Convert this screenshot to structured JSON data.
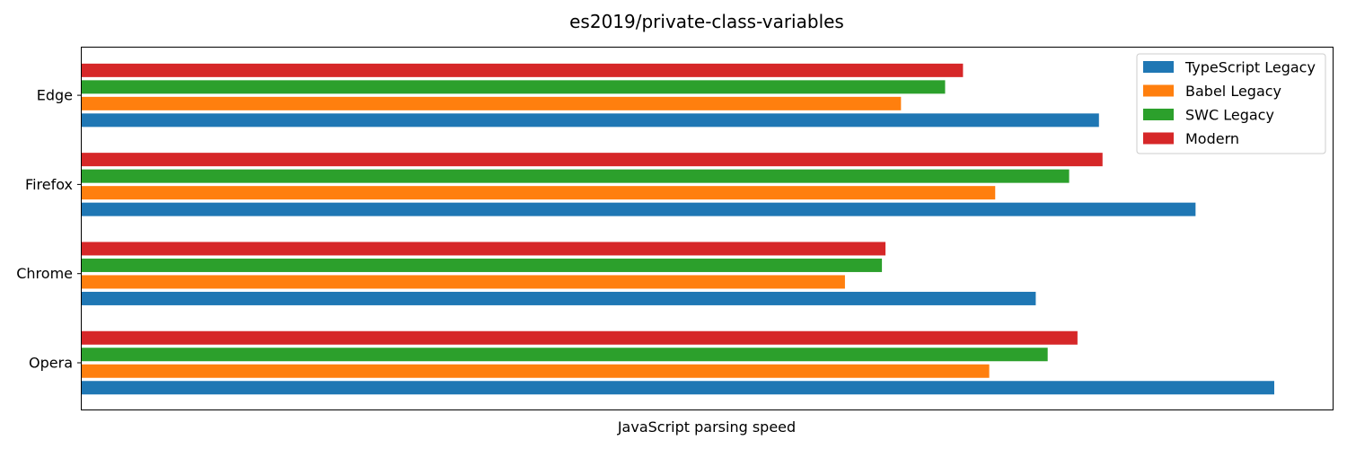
{
  "chart_data": {
    "type": "bar",
    "orientation": "horizontal",
    "title": "es2019/private-class-variables",
    "xlabel": "JavaScript parsing speed",
    "ylabel": "",
    "categories": [
      "Opera",
      "Chrome",
      "Firefox",
      "Edge"
    ],
    "xlim": [
      0,
      1
    ],
    "x_ticks_shown": false,
    "grid": false,
    "legend_position": "top-right",
    "series": [
      {
        "name": "TypeScript Legacy",
        "color": "#1f77b4",
        "values": [
          1.0,
          0.8,
          0.934,
          0.853
        ]
      },
      {
        "name": "Babel Legacy",
        "color": "#ff7f0e",
        "values": [
          0.761,
          0.64,
          0.766,
          0.687
        ]
      },
      {
        "name": "SWC Legacy",
        "color": "#2ca02c",
        "values": [
          0.81,
          0.671,
          0.828,
          0.724
        ]
      },
      {
        "name": "Modern",
        "color": "#d62728",
        "values": [
          0.835,
          0.674,
          0.856,
          0.739
        ]
      }
    ]
  }
}
